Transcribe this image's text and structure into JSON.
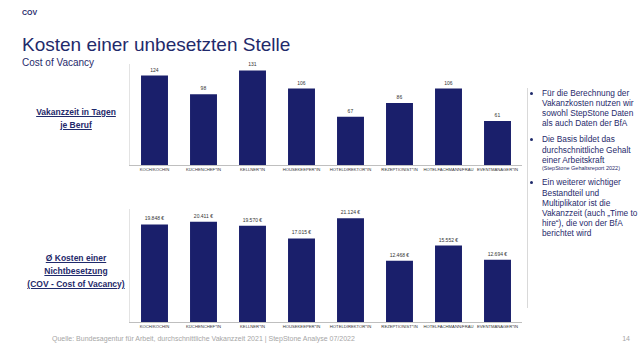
{
  "header": {
    "label": "COV",
    "title": "Kosten einer unbesetzten Stelle",
    "subtitle": "Cost of Vacancy"
  },
  "chart_data": [
    {
      "type": "bar",
      "title": "Vakanzzeit in Tagen\nje Beruf",
      "categories": [
        "KOCH/KÖCHIN",
        "KÜCHENCHEF*IN",
        "KELLNER*IN",
        "HOUSEKEEPER*IN",
        "HOTELDIREKTOR*IN",
        "REZEPTIONIST*IN",
        "HOTELFACHMANN/FRAU",
        "EVENTMANAGER*IN"
      ],
      "values": [
        124,
        98,
        131,
        106,
        67,
        86,
        106,
        61
      ],
      "color": "#1a1f6b",
      "ylim": [
        0,
        140
      ],
      "grid": false,
      "data_labels": true,
      "tick_labels": "x"
    },
    {
      "type": "bar",
      "title": "Ø Kosten einer Nichtbesetzung\n(COV - Cost of Vacancy)",
      "categories": [
        "KOCH/KÖCHIN",
        "KÜCHENCHEF*IN",
        "KELLNER*IN",
        "HOUSEKEEPER*IN",
        "HOTELDIREKTOR*IN",
        "REZEPTIONIST*IN",
        "HOTELFACHMANN/FRAU",
        "EVENTMANAGER*IN"
      ],
      "values": [
        19848,
        20411,
        19570,
        17015,
        21124,
        12468,
        15552,
        12694
      ],
      "value_labels": [
        "19.848 €",
        "20.411 €",
        "19.570 €",
        "17.015 €",
        "21.124 €",
        "12.468 €",
        "15.552 €",
        "12.694 €"
      ],
      "color": "#1a1f6b",
      "ylim": [
        0,
        23000
      ],
      "grid": false,
      "data_labels": true,
      "tick_labels": "x"
    }
  ],
  "notes": [
    {
      "text": "Für die Berechnung der Vakanzkosten nutzen wir sowohl StepStone Daten als auch Daten der BfA"
    },
    {
      "text": "Die Basis bildet das durchschnittliche Gehalt einer Arbeitskraft",
      "note": "(StepStone Gehaltsreport 2022)"
    },
    {
      "text": "Ein weiterer wichtiger Bestandteil und Multiplikator ist die Vakanzzeit (auch „Time to hire“), die von der BfA berichtet wird"
    }
  ],
  "footer": {
    "source": "Quelle: Bundesagentur für Arbeit, durchschnittliche Vakanzzeit 2021  |  StepStone Analyse 07/2022",
    "page": "14"
  }
}
